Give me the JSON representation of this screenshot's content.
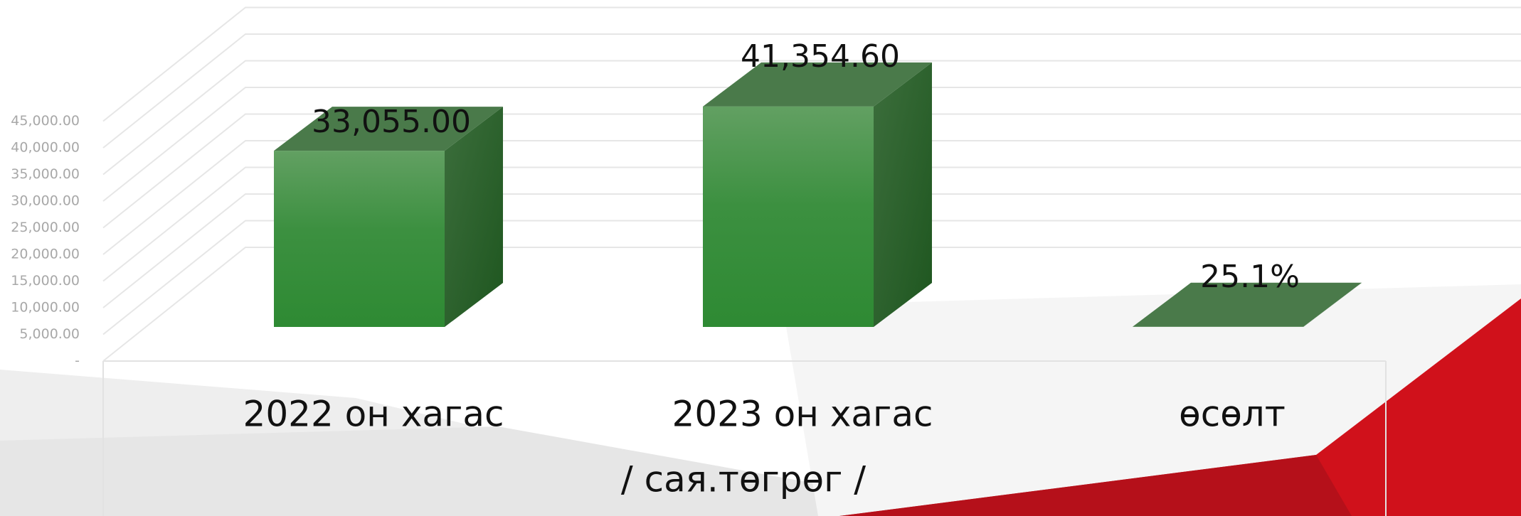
{
  "chart_data": {
    "type": "bar3d",
    "categories": [
      "2022 он  хагас",
      "2023 он хагас",
      "өсөлт"
    ],
    "values": [
      33055.0,
      41354.6,
      25.1
    ],
    "value_labels": [
      "33,055.00",
      "41,354.60",
      "25.1%"
    ],
    "x_label": "/ сая.төгрөг /",
    "color": "#338a38",
    "ylim": [
      0,
      45000
    ],
    "yticks": [
      {
        "value": 0,
        "label": "-"
      },
      {
        "value": 5000,
        "label": "5,000.00"
      },
      {
        "value": 10000,
        "label": "10,000.00"
      },
      {
        "value": 15000,
        "label": "15,000.00"
      },
      {
        "value": 20000,
        "label": "20,000.00"
      },
      {
        "value": 25000,
        "label": "25,000.00"
      },
      {
        "value": 30000,
        "label": "30,000.00"
      },
      {
        "value": 35000,
        "label": "35,000.00"
      },
      {
        "value": 40000,
        "label": "40,000.00"
      },
      {
        "value": 45000,
        "label": "45,000.00"
      }
    ],
    "grid": true
  }
}
